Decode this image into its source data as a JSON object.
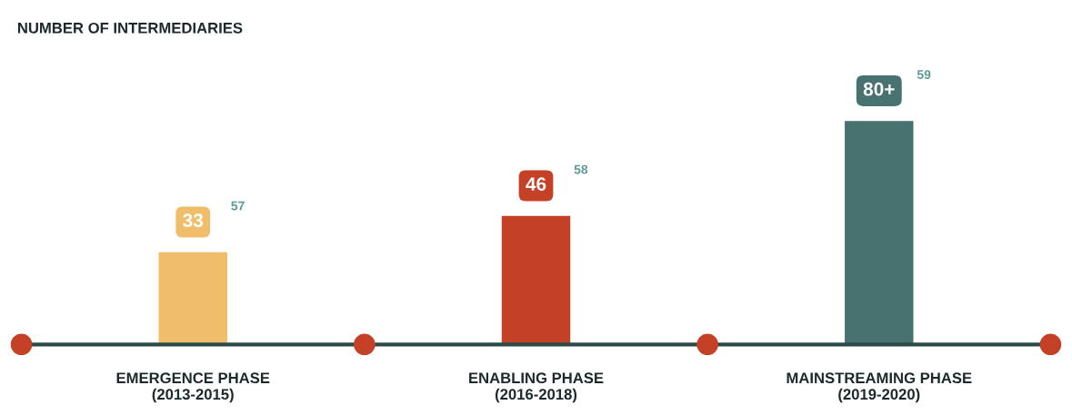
{
  "chart_data": {
    "type": "bar",
    "title": "NUMBER OF INTERMEDIARIES",
    "categories": [
      "EMERGENCE PHASE\n(2013-2015)",
      "ENABLING PHASE\n(2016-2018)",
      "MAINSTREAMING PHASE\n(2019-2020)"
    ],
    "values": [
      33,
      46,
      80
    ],
    "colors": [
      "#f0be6a",
      "#c44127",
      "#477270"
    ],
    "value_labels": [
      "33",
      "46",
      "80+"
    ],
    "annotations": [
      "57",
      "58",
      "59"
    ],
    "legend": false
  }
}
